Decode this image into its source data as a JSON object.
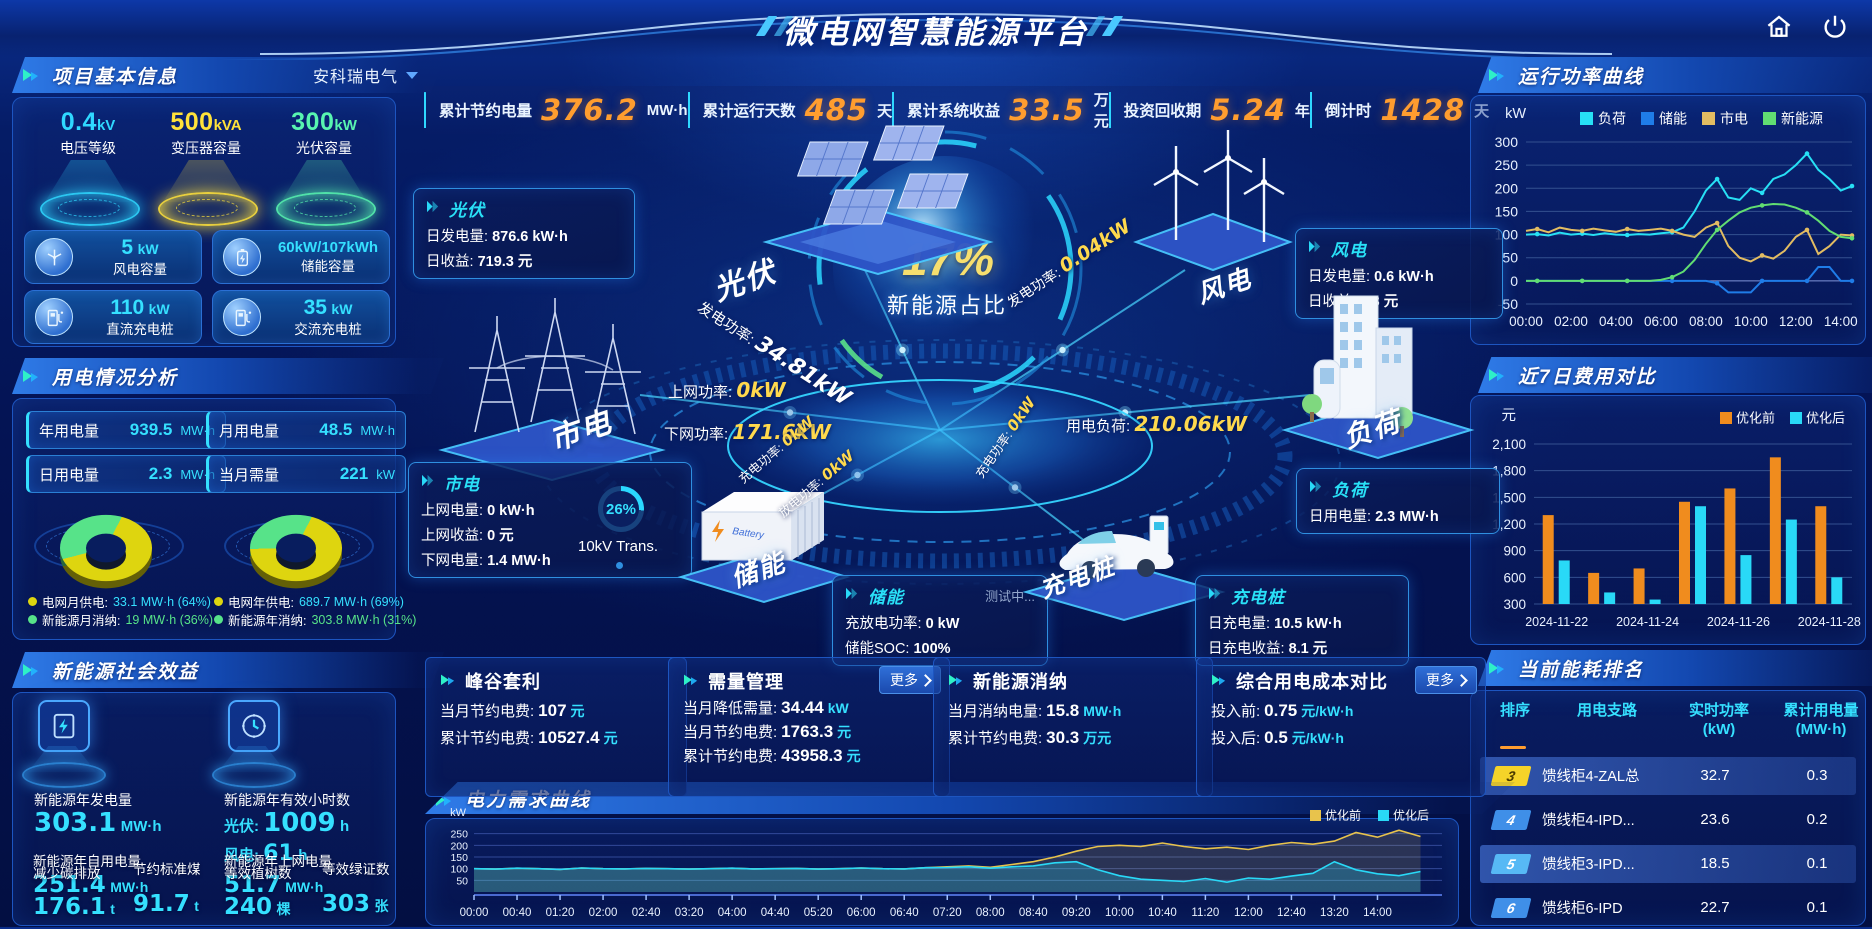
{
  "header": {
    "title": "微电网智慧能源平台"
  },
  "window_controls": [
    {
      "icon": "home-icon"
    },
    {
      "icon": "power-icon"
    }
  ],
  "topbar": {
    "stats": [
      {
        "label": "累计节约电量",
        "value": "376.2",
        "unit": "MW·h"
      },
      {
        "label": "累计运行天数",
        "value": "485",
        "unit": "天"
      },
      {
        "label": "累计系统收益",
        "value": "33.5",
        "unit": "万元"
      },
      {
        "label": "投资回收期",
        "value": "5.24",
        "unit": "年"
      },
      {
        "label": "倒计时",
        "value": "1428",
        "unit": "天"
      }
    ]
  },
  "project_panel": {
    "title": "项目基本信息",
    "company": "安科瑞电气",
    "pedestals": [
      {
        "value": "0.4",
        "unit": "kV",
        "label": "电压等级",
        "color": "#2fd8ff"
      },
      {
        "value": "500",
        "unit": "kVA",
        "label": "变压器容量",
        "color": "#ffe23a"
      },
      {
        "value": "300",
        "unit": "kW",
        "label": "光伏容量",
        "color": "#58f5b0"
      }
    ],
    "cards": [
      {
        "icon": "wind-turbine-icon",
        "value": "5",
        "unit": "kW",
        "label": "风电容量"
      },
      {
        "icon": "battery-icon",
        "value": "60kW/107kWh",
        "unit": "",
        "label": "储能容量"
      },
      {
        "icon": "ev-charger-icon",
        "value": "110",
        "unit": "kW",
        "label": "直流充电桩"
      },
      {
        "icon": "ev-charger-icon",
        "value": "35",
        "unit": "kW",
        "label": "交流充电桩"
      }
    ]
  },
  "usage_panel": {
    "title": "用电情况分析",
    "stats": [
      {
        "label": "年用电量",
        "value": "939.5",
        "unit": "MW·h"
      },
      {
        "label": "月用电量",
        "value": "48.5",
        "unit": "MW·h"
      },
      {
        "label": "日用电量",
        "value": "2.3",
        "unit": "MW·h"
      },
      {
        "label": "当月需量",
        "value": "221",
        "unit": "kW"
      }
    ],
    "donuts": [
      {
        "slices": [
          {
            "name": "电网月供电",
            "value": "33.1 MW·h",
            "percent": 64,
            "color": "#ded50f",
            "text_color": "#35e0ff"
          },
          {
            "name": "新能源月消纳",
            "value": "19 MW·h",
            "percent": 36,
            "color": "#57e389",
            "text_color": "#57e389"
          }
        ]
      },
      {
        "slices": [
          {
            "name": "电网年供电",
            "value": "689.7 MW·h",
            "percent": 69,
            "color": "#ded50f",
            "text_color": "#35e0ff"
          },
          {
            "name": "新能源年消纳",
            "value": "303.8 MW·h",
            "percent": 31,
            "color": "#57e389",
            "text_color": "#57e389"
          }
        ]
      }
    ]
  },
  "benefit_panel": {
    "title": "新能源社会效益",
    "stands": [
      {
        "icon": "lightning-icon",
        "label": "新能源年发电量",
        "lines": [
          {
            "prefix": "",
            "value": "303.1",
            "unit": "MW·h"
          }
        ]
      },
      {
        "icon": "clock-icon",
        "label": "新能源年有效小时数",
        "lines": [
          {
            "prefix": "光伏:",
            "value": "1009",
            "unit": "h"
          },
          {
            "prefix": "风电:",
            "value": "61",
            "unit": "h"
          }
        ]
      }
    ],
    "metrics": [
      {
        "label": "新能源年自用电量",
        "value": "251.4",
        "unit": "MW·h"
      },
      {
        "label": "减少碳排放",
        "value": "176.1",
        "unit": "t"
      },
      {
        "label": "节约标准煤",
        "value": "91.7",
        "unit": "t"
      },
      {
        "label": "新能源年上网电量",
        "value": "51.7",
        "unit": "MW·h"
      },
      {
        "label": "等效植树数",
        "value": "240",
        "unit": "棵"
      },
      {
        "label": "等效绿证数",
        "value": "303",
        "unit": "张"
      }
    ]
  },
  "center": {
    "ratio_value": "17%",
    "ratio_label": "新能源占比",
    "transformer_load": "26%",
    "transformer_label": "10kV Trans.",
    "nodes": [
      {
        "id": "pv",
        "title": "光伏",
        "iso_label": "光伏",
        "rows": [
          {
            "label": "日发电量:",
            "value": "876.6 kW·h"
          },
          {
            "label": "日收益:",
            "value": "719.3 元"
          }
        ]
      },
      {
        "id": "wind",
        "title": "风电",
        "iso_label": "风电",
        "rows": [
          {
            "label": "日发电量:",
            "value": "0.6 kW·h"
          },
          {
            "label": "日收益:",
            "value": "0.3 元"
          }
        ]
      },
      {
        "id": "grid",
        "title": "市电",
        "iso_label": "市电",
        "rows": [
          {
            "label": "上网电量:",
            "value": "0 kW·h"
          },
          {
            "label": "上网收益:",
            "value": "0 元"
          },
          {
            "label": "下网电量:",
            "value": "1.4 MW·h"
          }
        ]
      },
      {
        "id": "storage",
        "title": "储能",
        "iso_label": "储能",
        "tag": "测试中...",
        "rows": [
          {
            "label": "充放电功率:",
            "value": "0 kW"
          },
          {
            "label": "储能SOC:",
            "value": "100%"
          }
        ]
      },
      {
        "id": "charger",
        "title": "充电桩",
        "iso_label": "充电桩",
        "rows": [
          {
            "label": "日充电量:",
            "value": "10.5 kW·h"
          },
          {
            "label": "日充电收益:",
            "value": "8.1 元"
          }
        ]
      },
      {
        "id": "load",
        "title": "负荷",
        "iso_label": "负荷",
        "rows": [
          {
            "label": "日用电量:",
            "value": "2.3 MW·h"
          }
        ]
      }
    ],
    "flows": [
      {
        "label": "发电功率:",
        "value": "34.81kW"
      },
      {
        "label": "发电功率:",
        "value": "0.04kW"
      },
      {
        "label": "上网功率:",
        "value": "0kW"
      },
      {
        "label": "下网功率:",
        "value": "171.6kW"
      },
      {
        "label": "用电负荷:",
        "value": "210.06kW"
      },
      {
        "label": "充电功率:",
        "value": "0kW"
      },
      {
        "label": "放电功率:",
        "value": "0kW"
      },
      {
        "label": "充电功率:",
        "value": "0kW"
      }
    ]
  },
  "summary_cards": [
    {
      "title": "峰谷套利",
      "more": false,
      "more_label": "",
      "rows": [
        {
          "label": "当月节约电费:",
          "value": "107",
          "unit": "元"
        },
        {
          "label": "累计节约电费:",
          "value": "10527.4",
          "unit": "元"
        }
      ]
    },
    {
      "title": "需量管理",
      "more": true,
      "more_label": "更多",
      "rows": [
        {
          "label": "当月降低需量:",
          "value": "34.44",
          "unit": "kW"
        },
        {
          "label": "当月节约电费:",
          "value": "1763.3",
          "unit": "元"
        },
        {
          "label": "累计节约电费:",
          "value": "43958.3",
          "unit": "元"
        }
      ]
    },
    {
      "title": "新能源消纳",
      "more": false,
      "more_label": "",
      "rows": [
        {
          "label": "当月消纳电量:",
          "value": "15.8",
          "unit": "MW·h"
        },
        {
          "label": "累计节约电费:",
          "value": "30.3",
          "unit": "万元"
        }
      ]
    },
    {
      "title": "综合用电成本对比",
      "more": true,
      "more_label": "更多",
      "rows": [
        {
          "label": "投入前:",
          "value": "0.75",
          "unit": "元/kW·h"
        },
        {
          "label": "投入后:",
          "value": "0.5",
          "unit": "元/kW·h"
        }
      ]
    }
  ],
  "ranking": {
    "title": "当前能耗排名",
    "columns": [
      {
        "l1": "排序",
        "l2": ""
      },
      {
        "l1": "用电支路",
        "l2": ""
      },
      {
        "l1": "实时功率",
        "l2": "(kW)"
      },
      {
        "l1": "累计用电量",
        "l2": "(MW·h)"
      }
    ],
    "rows": [
      {
        "rank": "3",
        "branch": "馈线柜4-ZAL总",
        "power": "32.7",
        "energy": "0.3",
        "badge": "gold",
        "highlight": true
      },
      {
        "rank": "4",
        "branch": "馈线柜4-IPD...",
        "power": "23.6",
        "energy": "0.2",
        "badge": "blue",
        "highlight": false
      },
      {
        "rank": "5",
        "branch": "馈线柜3-IPD...",
        "power": "18.5",
        "energy": "0.1",
        "badge": "lightblue",
        "highlight": true
      },
      {
        "rank": "6",
        "branch": "馈线柜6-IPD",
        "power": "22.7",
        "energy": "0.1",
        "badge": "blue",
        "highlight": false
      }
    ]
  },
  "chart_data": [
    {
      "id": "power-curve",
      "type": "line",
      "title": "运行功率曲线",
      "ylabel": "kW",
      "ylim": [
        -50,
        300
      ],
      "yticks": [
        300,
        250,
        200,
        150,
        100,
        50,
        0,
        -50
      ],
      "xticks": [
        "00:00",
        "02:00",
        "04:00",
        "06:00",
        "08:00",
        "10:00",
        "12:00",
        "14:00"
      ],
      "x_hours_max": 14.5,
      "step_hours": 0.5,
      "grid": true,
      "legend_position": "top",
      "series": [
        {
          "name": "负荷",
          "color": "#27e0f5",
          "values": [
            100,
            101,
            98,
            104,
            100,
            102,
            99,
            103,
            100,
            99,
            101,
            100,
            103,
            105,
            115,
            150,
            195,
            220,
            180,
            175,
            200,
            190,
            220,
            230,
            250,
            275,
            240,
            220,
            195,
            205
          ]
        },
        {
          "name": "储能",
          "color": "#1f7ce8",
          "values": [
            0,
            0,
            0,
            0,
            0,
            0,
            0,
            0,
            0,
            0,
            0,
            0,
            0,
            0,
            0,
            0,
            0,
            -5,
            -25,
            -25,
            -25,
            0,
            0,
            0,
            0,
            0,
            30,
            30,
            0,
            0
          ]
        },
        {
          "name": "市电",
          "color": "#e2bc62",
          "values": [
            108,
            112,
            105,
            115,
            110,
            108,
            113,
            109,
            106,
            112,
            108,
            110,
            113,
            108,
            100,
            95,
            115,
            125,
            75,
            50,
            42,
            55,
            48,
            65,
            95,
            110,
            58,
            75,
            100,
            98
          ]
        },
        {
          "name": "新能源",
          "color": "#61dd72",
          "values": [
            0,
            0,
            0,
            0,
            0,
            0,
            0,
            0,
            0,
            0,
            0,
            0,
            2,
            8,
            20,
            45,
            80,
            110,
            130,
            148,
            158,
            163,
            166,
            165,
            158,
            148,
            130,
            108,
            95,
            92
          ]
        }
      ]
    },
    {
      "id": "cost-compare",
      "type": "bar",
      "title": "近7日费用对比",
      "ylabel": "元",
      "ylim": [
        300,
        2100
      ],
      "yticks": [
        "2,100",
        "1,800",
        "1,500",
        "1,200",
        "900",
        "600",
        "300"
      ],
      "categories": [
        "2024-11-22",
        "2024-11-23",
        "2024-11-24",
        "2024-11-25",
        "2024-11-26",
        "2024-11-27",
        "2024-11-28"
      ],
      "xtick_labels": [
        "2024-11-22",
        "2024-11-24",
        "2024-11-26",
        "2024-11-28"
      ],
      "grid": true,
      "legend_position": "top-right",
      "series": [
        {
          "name": "优化前",
          "color": "#f08c1e",
          "values": [
            1300,
            650,
            700,
            1450,
            1600,
            1950,
            1400
          ]
        },
        {
          "name": "优化后",
          "color": "#29d9f7",
          "values": [
            790,
            430,
            350,
            1400,
            850,
            1250,
            600
          ]
        }
      ]
    },
    {
      "id": "demand-curve",
      "type": "line",
      "title": "电力需求曲线",
      "ylabel": "kW",
      "ylim": [
        0,
        300
      ],
      "yticks": [
        250,
        200,
        150,
        100,
        50
      ],
      "xticks": [
        "00:00",
        "00:40",
        "01:20",
        "02:00",
        "02:40",
        "03:20",
        "04:00",
        "04:40",
        "05:20",
        "06:00",
        "06:40",
        "07:20",
        "08:00",
        "08:40",
        "09:20",
        "10:00",
        "10:40",
        "11:20",
        "12:00",
        "12:40",
        "13:20",
        "14:00"
      ],
      "grid": true,
      "legend_position": "top-right",
      "series": [
        {
          "name": "优化前",
          "color": "#e8c34c",
          "values": [
            100,
            98,
            102,
            100,
            97,
            103,
            100,
            99,
            101,
            100,
            98,
            100,
            102,
            99,
            100,
            101,
            98,
            100,
            103,
            100,
            99,
            104,
            108,
            112,
            106,
            118,
            130,
            150,
            175,
            195,
            200,
            195,
            210,
            195,
            185,
            192,
            182,
            200,
            212,
            205,
            218,
            255,
            235,
            265,
            238
          ]
        },
        {
          "name": "优化后",
          "color": "#29d9f7",
          "values": [
            100,
            98,
            102,
            100,
            97,
            103,
            100,
            99,
            101,
            100,
            98,
            100,
            102,
            99,
            100,
            101,
            98,
            100,
            103,
            100,
            99,
            104,
            105,
            108,
            102,
            108,
            112,
            125,
            130,
            95,
            70,
            55,
            50,
            45,
            58,
            42,
            60,
            55,
            68,
            80,
            130,
            95,
            78,
            70,
            88
          ]
        }
      ]
    }
  ],
  "colors": {
    "accent_cyan": "#2fd8ff",
    "accent_yellow": "#ffd21c",
    "kpi_orange": "#ff9d2f",
    "value_cyan": "#35e0ff",
    "green": "#57e389",
    "bar_before": "#f08c1e",
    "bar_after": "#29d9f7"
  }
}
